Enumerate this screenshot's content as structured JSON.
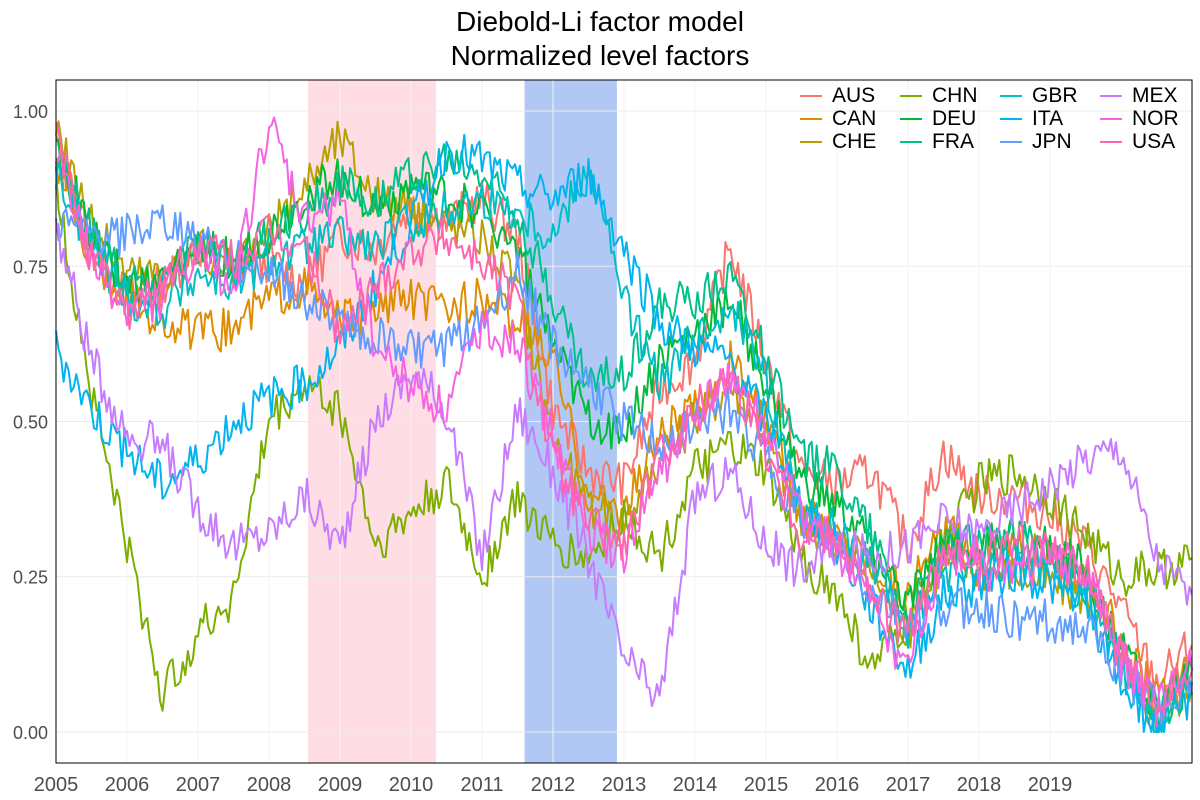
{
  "chart_data": {
    "type": "line",
    "title": "Diebold-Li factor model",
    "subtitle": "Normalized level factors",
    "xlabel": "",
    "ylabel": "",
    "xlim": [
      2005.0,
      2021.0
    ],
    "ylim": [
      -0.05,
      1.05
    ],
    "grid": true,
    "legend_position": "top-right",
    "x_tick_labels": [
      "2005",
      "2006",
      "2007",
      "2008",
      "2009",
      "2010",
      "2011",
      "2012",
      "2013",
      "2014",
      "2015",
      "2016",
      "2017",
      "2018",
      "2019"
    ],
    "y_ticks": [
      0.0,
      0.25,
      0.5,
      0.75,
      1.0
    ],
    "y_tick_labels": [
      "0.00",
      "0.25",
      "0.50",
      "0.75",
      "1.00"
    ],
    "shaded_regions": [
      {
        "x_start": 2008.55,
        "x_end": 2010.35,
        "color": "#ffdde4"
      },
      {
        "x_start": 2011.6,
        "x_end": 2012.9,
        "color": "#b1c8f4"
      }
    ],
    "x": [
      2005.0,
      2005.5,
      2006.0,
      2006.5,
      2007.0,
      2007.5,
      2008.0,
      2008.5,
      2009.0,
      2009.5,
      2010.0,
      2010.5,
      2011.0,
      2011.5,
      2012.0,
      2012.5,
      2013.0,
      2013.5,
      2014.0,
      2014.5,
      2015.0,
      2015.5,
      2016.0,
      2016.5,
      2017.0,
      2017.5,
      2018.0,
      2018.5,
      2019.0,
      2019.5,
      2020.0,
      2020.5,
      2021.0
    ],
    "series": [
      {
        "name": "AUS",
        "color": "#F8766D",
        "values": [
          0.95,
          0.78,
          0.7,
          0.72,
          0.78,
          0.74,
          0.76,
          0.72,
          0.8,
          0.78,
          0.85,
          0.82,
          0.86,
          0.8,
          0.52,
          0.42,
          0.4,
          0.55,
          0.6,
          0.78,
          0.6,
          0.42,
          0.4,
          0.42,
          0.3,
          0.45,
          0.38,
          0.38,
          0.35,
          0.3,
          0.2,
          0.08,
          0.14
        ]
      },
      {
        "name": "CAN",
        "color": "#DE8C00",
        "values": [
          0.92,
          0.76,
          0.7,
          0.66,
          0.64,
          0.65,
          0.7,
          0.72,
          0.66,
          0.68,
          0.7,
          0.68,
          0.7,
          0.66,
          0.6,
          0.38,
          0.36,
          0.48,
          0.52,
          0.6,
          0.5,
          0.35,
          0.32,
          0.28,
          0.22,
          0.32,
          0.3,
          0.3,
          0.28,
          0.25,
          0.15,
          0.05,
          0.1
        ]
      },
      {
        "name": "CHE",
        "color": "#B79F00",
        "values": [
          0.98,
          0.82,
          0.74,
          0.74,
          0.78,
          0.74,
          0.8,
          0.88,
          0.96,
          0.86,
          0.84,
          0.82,
          0.8,
          0.72,
          0.48,
          0.36,
          0.34,
          0.44,
          0.5,
          0.56,
          0.48,
          0.34,
          0.3,
          0.26,
          0.16,
          0.28,
          0.26,
          0.26,
          0.24,
          0.22,
          0.12,
          0.02,
          0.08
        ]
      },
      {
        "name": "CHN",
        "color": "#7CAE00",
        "values": [
          0.88,
          0.55,
          0.3,
          0.06,
          0.16,
          0.22,
          0.5,
          0.56,
          0.52,
          0.3,
          0.35,
          0.4,
          0.25,
          0.38,
          0.3,
          0.28,
          0.35,
          0.28,
          0.42,
          0.46,
          0.42,
          0.28,
          0.22,
          0.1,
          0.18,
          0.3,
          0.4,
          0.42,
          0.38,
          0.32,
          0.25,
          0.26,
          0.28
        ]
      },
      {
        "name": "DEU",
        "color": "#00BA38",
        "values": [
          0.94,
          0.8,
          0.72,
          0.72,
          0.78,
          0.76,
          0.8,
          0.86,
          0.9,
          0.84,
          0.88,
          0.86,
          0.84,
          0.78,
          0.62,
          0.5,
          0.48,
          0.6,
          0.64,
          0.7,
          0.56,
          0.4,
          0.36,
          0.3,
          0.2,
          0.3,
          0.3,
          0.32,
          0.3,
          0.26,
          0.14,
          0.04,
          0.1
        ]
      },
      {
        "name": "FRA",
        "color": "#00C08B",
        "values": [
          0.93,
          0.8,
          0.72,
          0.72,
          0.78,
          0.76,
          0.8,
          0.84,
          0.88,
          0.86,
          0.9,
          0.92,
          0.9,
          0.84,
          0.7,
          0.56,
          0.58,
          0.68,
          0.7,
          0.74,
          0.6,
          0.44,
          0.42,
          0.32,
          0.18,
          0.3,
          0.3,
          0.32,
          0.28,
          0.24,
          0.12,
          0.02,
          0.08
        ]
      },
      {
        "name": "GBR",
        "color": "#00BFC4",
        "values": [
          0.9,
          0.78,
          0.7,
          0.68,
          0.74,
          0.72,
          0.76,
          0.78,
          0.8,
          0.78,
          0.82,
          0.84,
          0.86,
          0.84,
          0.8,
          0.92,
          0.7,
          0.56,
          0.62,
          0.7,
          0.56,
          0.36,
          0.32,
          0.26,
          0.16,
          0.26,
          0.26,
          0.28,
          0.26,
          0.22,
          0.1,
          0.0,
          0.08
        ]
      },
      {
        "name": "ITA",
        "color": "#00B4F0",
        "values": [
          0.62,
          0.52,
          0.45,
          0.4,
          0.44,
          0.5,
          0.54,
          0.56,
          0.62,
          0.72,
          0.82,
          0.94,
          0.92,
          0.88,
          0.86,
          0.9,
          0.78,
          0.66,
          0.62,
          0.6,
          0.5,
          0.36,
          0.3,
          0.2,
          0.1,
          0.22,
          0.24,
          0.26,
          0.24,
          0.2,
          0.08,
          0.0,
          0.06
        ]
      },
      {
        "name": "JPN",
        "color": "#619CFF",
        "values": [
          0.82,
          0.8,
          0.8,
          0.82,
          0.8,
          0.76,
          0.74,
          0.7,
          0.66,
          0.64,
          0.62,
          0.62,
          0.66,
          0.74,
          0.62,
          0.56,
          0.5,
          0.46,
          0.5,
          0.52,
          0.44,
          0.34,
          0.3,
          0.22,
          0.18,
          0.2,
          0.2,
          0.18,
          0.18,
          0.16,
          0.1,
          0.04,
          0.08
        ]
      },
      {
        "name": "MEX",
        "color": "#C77CFF",
        "values": [
          0.82,
          0.6,
          0.48,
          0.46,
          0.36,
          0.3,
          0.32,
          0.38,
          0.3,
          0.5,
          0.58,
          0.52,
          0.28,
          0.52,
          0.42,
          0.28,
          0.12,
          0.05,
          0.38,
          0.42,
          0.3,
          0.26,
          0.3,
          0.28,
          0.3,
          0.34,
          0.32,
          0.36,
          0.4,
          0.44,
          0.46,
          0.28,
          0.22
        ]
      },
      {
        "name": "NOR",
        "color": "#F564E3",
        "values": [
          0.95,
          0.75,
          0.68,
          0.7,
          0.76,
          0.72,
          0.98,
          0.82,
          0.86,
          0.62,
          0.56,
          0.52,
          0.66,
          0.62,
          0.48,
          0.32,
          0.28,
          0.42,
          0.5,
          0.58,
          0.48,
          0.34,
          0.3,
          0.2,
          0.1,
          0.28,
          0.26,
          0.26,
          0.28,
          0.26,
          0.12,
          0.04,
          0.1
        ]
      },
      {
        "name": "USA",
        "color": "#FF64B0",
        "values": [
          0.96,
          0.76,
          0.68,
          0.72,
          0.78,
          0.76,
          0.8,
          0.78,
          0.64,
          0.72,
          0.78,
          0.8,
          0.76,
          0.7,
          0.44,
          0.34,
          0.3,
          0.44,
          0.52,
          0.58,
          0.46,
          0.32,
          0.32,
          0.22,
          0.16,
          0.28,
          0.28,
          0.3,
          0.3,
          0.26,
          0.12,
          0.04,
          0.1
        ]
      }
    ]
  }
}
